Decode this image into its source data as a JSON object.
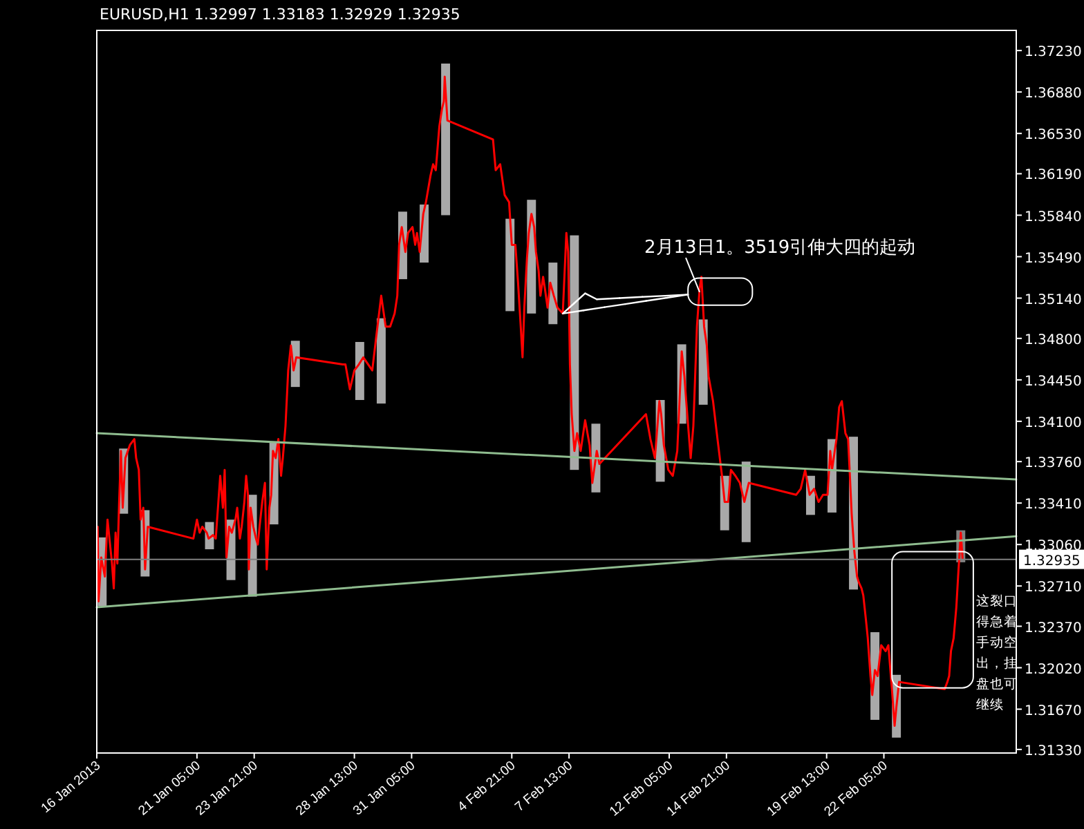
{
  "chart_data": {
    "type": "line",
    "title": "EURUSD,H1  1.32997 1.33183 1.32929 1.32935",
    "xlim": [
      "2013-01-16T13:00",
      "2013-02-28T09:00"
    ],
    "xticks": [
      {
        "value": "2013-01-16T13:00",
        "label": "16 Jan 2013"
      },
      {
        "value": "2013-01-21T05:00",
        "label": "21 Jan 05:00"
      },
      {
        "value": "2013-01-23T21:00",
        "label": "23 Jan 21:00"
      },
      {
        "value": "2013-01-28T13:00",
        "label": "28 Jan 13:00"
      },
      {
        "value": "2013-01-31T05:00",
        "label": "31 Jan 05:00"
      },
      {
        "value": "2013-02-04T21:00",
        "label": "4 Feb 21:00"
      },
      {
        "value": "2013-02-07T13:00",
        "label": "7 Feb 13:00"
      },
      {
        "value": "2013-02-12T05:00",
        "label": "12 Feb 05:00"
      },
      {
        "value": "2013-02-14T21:00",
        "label": "14 Feb 21:00"
      },
      {
        "value": "2013-02-19T13:00",
        "label": "19 Feb 13:00"
      },
      {
        "value": "2013-02-22T05:00",
        "label": "22 Feb 05:00"
      }
    ],
    "ylim": [
      1.313,
      1.374
    ],
    "yticks": [
      {
        "value": 1.3723,
        "label": "1.37230"
      },
      {
        "value": 1.3688,
        "label": "1.36880"
      },
      {
        "value": 1.3653,
        "label": "1.36530"
      },
      {
        "value": 1.3619,
        "label": "1.36190"
      },
      {
        "value": 1.3584,
        "label": "1.35840"
      },
      {
        "value": 1.3549,
        "label": "1.35490"
      },
      {
        "value": 1.3514,
        "label": "1.35140"
      },
      {
        "value": 1.348,
        "label": "1.34800"
      },
      {
        "value": 1.3445,
        "label": "1.34450"
      },
      {
        "value": 1.341,
        "label": "1.34100"
      },
      {
        "value": 1.3376,
        "label": "1.33760"
      },
      {
        "value": 1.3341,
        "label": "1.33410"
      },
      {
        "value": 1.3306,
        "label": "1.33060"
      },
      {
        "value": 1.3271,
        "label": "1.32710"
      },
      {
        "value": 1.3237,
        "label": "1.32370"
      },
      {
        "value": 1.3202,
        "label": "1.32020"
      },
      {
        "value": 1.3167,
        "label": "1.31670"
      },
      {
        "value": 1.3133,
        "label": "1.31330"
      }
    ],
    "series": [
      {
        "type": "bar",
        "x": [
          "2013-01-16T19:00",
          "2013-01-17T19:00",
          "2013-01-18T19:00",
          "2013-01-21T19:00",
          "2013-01-22T19:00",
          "2013-01-23T19:00",
          "2013-01-24T19:00",
          "2013-01-25T19:00",
          "2013-01-28T19:00",
          "2013-01-29T19:00",
          "2013-01-30T19:00",
          "2013-01-31T19:00",
          "2013-02-01T19:00",
          "2013-02-04T19:00",
          "2013-02-05T19:00",
          "2013-02-06T19:00",
          "2013-02-07T19:00",
          "2013-02-08T19:00",
          "2013-02-11T19:00",
          "2013-02-12T19:00",
          "2013-02-13T19:00",
          "2013-02-14T19:00",
          "2013-02-15T19:00",
          "2013-02-18T19:00",
          "2013-02-19T19:00",
          "2013-02-20T19:00",
          "2013-02-21T19:00",
          "2013-02-22T19:00",
          "2013-02-25T19:00"
        ],
        "base": [
          1.3254,
          1.3332,
          1.3279,
          1.3302,
          1.3276,
          1.3262,
          1.3323,
          1.3439,
          1.3428,
          1.3425,
          1.353,
          1.3544,
          1.3584,
          1.3503,
          1.3501,
          1.3492,
          1.3369,
          1.335,
          1.3359,
          1.3408,
          1.3424,
          1.3318,
          1.3308,
          1.3331,
          1.3333,
          1.3268,
          1.3158,
          1.3143,
          1.3291
        ],
        "values": [
          0.0058,
          0.0055,
          0.0056,
          0.0023,
          0.0051,
          0.0086,
          0.0069,
          0.0039,
          0.0049,
          0.0072,
          0.0057,
          0.0049,
          0.0128,
          0.0078,
          0.0096,
          0.0052,
          0.0198,
          0.0058,
          0.0069,
          0.0067,
          0.0072,
          0.0046,
          0.0068,
          0.0033,
          0.0062,
          0.0129,
          0.0074,
          0.0053,
          0.0027
        ],
        "colors": [
          "#a9a9a9",
          "#a9a9a9",
          "#a9a9a9",
          "#a9a9a9",
          "#a9a9a9",
          "#a9a9a9",
          "#a9a9a9",
          "#a9a9a9",
          "#a9a9a9",
          "#a9a9a9",
          "#a9a9a9",
          "#a9a9a9",
          "#a9a9a9",
          "#a9a9a9",
          "#a9a9a9",
          "#a9a9a9",
          "#a9a9a9",
          "#a9a9a9",
          "#a9a9a9",
          "#a9a9a9",
          "#a9a9a9",
          "#a9a9a9",
          "#a9a9a9",
          "#a9a9a9",
          "#a9a9a9",
          "#a9a9a9",
          "#a9a9a9",
          "#a9a9a9",
          "#808080"
        ]
      },
      {
        "color": "#ff0000",
        "x": [
          "2013-01-16T14:00",
          "2013-01-16T15:00",
          "2013-01-16T18:00",
          "2013-01-16T22:00",
          "2013-01-17T01:00",
          "2013-01-17T06:00",
          "2013-01-17T08:00",
          "2013-01-17T10:00",
          "2013-01-17T12:00",
          "2013-01-17T14:00",
          "2013-01-17T16:00",
          "2013-01-17T18:00",
          "2013-01-17T21:00",
          "2013-01-18T02:00",
          "2013-01-18T07:00",
          "2013-01-18T09:00",
          "2013-01-18T12:00",
          "2013-01-18T14:00",
          "2013-01-18T17:00",
          "2013-01-18T19:00",
          "2013-01-18T22:00",
          "2013-01-21T01:00",
          "2013-01-21T05:00",
          "2013-01-21T08:00",
          "2013-01-21T11:00",
          "2013-01-21T16:00",
          "2013-01-21T18:00",
          "2013-01-21T23:00",
          "2013-01-22T02:00",
          "2013-01-22T07:00",
          "2013-01-22T10:00",
          "2013-01-22T12:00",
          "2013-01-22T14:00",
          "2013-01-22T17:00",
          "2013-01-22T20:00",
          "2013-01-23T00:00",
          "2013-01-23T02:00",
          "2013-01-23T05:00",
          "2013-01-23T07:00",
          "2013-01-23T10:00",
          "2013-01-23T12:00",
          "2013-01-23T14:00",
          "2013-01-23T15:00",
          "2013-01-23T17:00",
          "2013-01-23T20:00",
          "2013-01-23T23:00",
          "2013-01-24T01:00",
          "2013-01-24T03:00",
          "2013-01-24T06:00",
          "2013-01-24T09:00",
          "2013-01-24T11:00",
          "2013-01-24T14:00",
          "2013-01-24T16:00",
          "2013-01-24T18:00",
          "2013-01-24T21:00",
          "2013-01-25T00:00",
          "2013-01-25T03:00",
          "2013-01-25T05:00",
          "2013-01-25T08:00",
          "2013-01-25T11:00",
          "2013-01-25T14:00",
          "2013-01-25T17:00",
          "2013-01-25T20:00",
          "2013-01-28T00:00",
          "2013-01-28T03:00",
          "2013-01-28T08:00",
          "2013-01-28T13:00",
          "2013-01-28T18:00",
          "2013-01-28T23:00",
          "2013-01-29T09:00",
          "2013-01-29T14:00",
          "2013-01-29T19:00",
          "2013-01-30T00:00",
          "2013-01-30T05:00",
          "2013-01-30T10:00",
          "2013-01-30T13:00",
          "2013-01-30T15:00",
          "2013-01-30T18:00",
          "2013-01-30T22:00",
          "2013-01-31T01:00",
          "2013-01-31T06:00",
          "2013-01-31T09:00",
          "2013-01-31T11:00",
          "2013-01-31T14:00",
          "2013-01-31T18:00",
          "2013-01-31T21:00",
          "2013-02-01T02:00",
          "2013-02-01T05:00",
          "2013-02-01T08:00",
          "2013-02-01T12:00",
          "2013-02-01T15:00",
          "2013-02-01T17:00",
          "2013-02-01T18:00",
          "2013-02-01T21:00",
          "2013-02-04T00:00",
          "2013-02-04T03:00",
          "2013-02-04T08:00",
          "2013-02-04T13:00",
          "2013-02-04T18:00",
          "2013-02-04T21:00",
          "2013-02-05T01:00",
          "2013-02-05T04:00",
          "2013-02-05T07:00",
          "2013-02-05T09:00",
          "2013-02-05T11:00",
          "2013-02-05T14:00",
          "2013-02-05T16:00",
          "2013-02-05T19:00",
          "2013-02-05T22:00",
          "2013-02-06T00:00",
          "2013-02-06T03:00",
          "2013-02-06T05:00",
          "2013-02-06T08:00",
          "2013-02-06T10:00",
          "2013-02-06T13:00",
          "2013-02-06T16:00",
          "2013-02-06T20:00",
          "2013-02-07T00:00",
          "2013-02-07T06:00",
          "2013-02-07T10:00",
          "2013-02-07T12:00",
          "2013-02-07T14:00",
          "2013-02-07T16:00",
          "2013-02-07T19:00",
          "2013-02-07T22:00",
          "2013-02-08T02:00",
          "2013-02-08T07:00",
          "2013-02-08T12:00",
          "2013-02-08T15:00",
          "2013-02-08T20:00",
          "2013-02-08T23:00",
          "2013-02-11T03:00",
          "2013-02-11T08:00",
          "2013-02-11T13:00",
          "2013-02-11T18:00",
          "2013-02-11T20:00",
          "2013-02-11T23:00",
          "2013-02-12T04:00",
          "2013-02-12T09:00",
          "2013-02-12T14:00",
          "2013-02-12T19:00",
          "2013-02-12T22:00",
          "2013-02-13T00:00",
          "2013-02-13T05:00",
          "2013-02-13T08:00",
          "2013-02-13T12:00",
          "2013-02-13T15:00",
          "2013-02-13T17:00",
          "2013-02-13T20:00",
          "2013-02-13T23:00",
          "2013-02-14T01:00",
          "2013-02-14T06:00",
          "2013-02-14T11:00",
          "2013-02-14T16:00",
          "2013-02-14T19:00",
          "2013-02-14T23:00",
          "2013-02-15T02:00",
          "2013-02-15T07:00",
          "2013-02-15T12:00",
          "2013-02-15T17:00",
          "2013-02-15T22:00",
          "2013-02-18T03:00",
          "2013-02-18T08:00",
          "2013-02-18T13:00",
          "2013-02-18T18:00",
          "2013-02-18T23:00",
          "2013-02-19T04:00",
          "2013-02-19T09:00",
          "2013-02-19T14:00",
          "2013-02-19T17:00",
          "2013-02-19T19:00",
          "2013-02-20T00:00",
          "2013-02-20T03:00",
          "2013-02-20T06:00",
          "2013-02-20T10:00",
          "2013-02-20T13:00",
          "2013-02-20T15:00",
          "2013-02-20T17:00",
          "2013-02-20T20:00",
          "2013-02-20T23:00",
          "2013-02-21T01:00",
          "2013-02-21T04:00",
          "2013-02-21T06:00",
          "2013-02-21T09:00",
          "2013-02-21T11:00",
          "2013-02-21T14:00",
          "2013-02-21T16:00",
          "2013-02-21T19:00",
          "2013-02-21T22:00",
          "2013-02-22T02:00",
          "2013-02-22T07:00",
          "2013-02-22T10:00",
          "2013-02-22T14:00",
          "2013-02-22T17:00",
          "2013-02-22T19:00",
          "2013-02-22T22:00",
          "2013-02-25T01:00",
          "2013-02-25T04:00",
          "2013-02-25T06:00",
          "2013-02-25T08:00",
          "2013-02-25T11:00",
          "2013-02-25T14:00",
          "2013-02-25T16:00",
          "2013-02-25T19:00",
          "2013-02-25T21:00"
        ],
        "values": [
          1.3321,
          1.3258,
          1.3295,
          1.3279,
          1.3327,
          1.329,
          1.3269,
          1.3316,
          1.329,
          1.3342,
          1.3385,
          1.3337,
          1.3379,
          1.339,
          1.3395,
          1.3379,
          1.3369,
          1.3327,
          1.3337,
          1.3285,
          1.3321,
          1.3311,
          1.3327,
          1.3316,
          1.3321,
          1.3316,
          1.3311,
          1.3314,
          1.3311,
          1.3364,
          1.3337,
          1.3369,
          1.3295,
          1.3321,
          1.3316,
          1.3327,
          1.3337,
          1.3311,
          1.3321,
          1.3342,
          1.3364,
          1.3348,
          1.3285,
          1.3337,
          1.3321,
          1.3311,
          1.3306,
          1.3321,
          1.3342,
          1.3358,
          1.3285,
          1.3337,
          1.3348,
          1.3385,
          1.3379,
          1.3395,
          1.3364,
          1.3379,
          1.3406,
          1.3453,
          1.3474,
          1.3453,
          1.3464,
          1.3458,
          1.3458,
          1.3437,
          1.3453,
          1.3458,
          1.3464,
          1.3453,
          1.3485,
          1.3516,
          1.349,
          1.349,
          1.3501,
          1.3516,
          1.3559,
          1.3574,
          1.3553,
          1.3569,
          1.3574,
          1.3559,
          1.3569,
          1.3553,
          1.3585,
          1.3595,
          1.3617,
          1.3627,
          1.3622,
          1.3659,
          1.3674,
          1.368,
          1.3701,
          1.3664,
          1.3648,
          1.3622,
          1.3627,
          1.3601,
          1.3595,
          1.3559,
          1.3559,
          1.3527,
          1.349,
          1.3464,
          1.3506,
          1.3548,
          1.3569,
          1.3585,
          1.3574,
          1.3553,
          1.3537,
          1.3516,
          1.3532,
          1.3522,
          1.3506,
          1.3527,
          1.3516,
          1.3506,
          1.3501,
          1.3569,
          1.3553,
          1.3458,
          1.3416,
          1.3385,
          1.34,
          1.3385,
          1.3411,
          1.339,
          1.3358,
          1.3385,
          1.3374,
          1.3416,
          1.3395,
          1.3379,
          1.3427,
          1.3416,
          1.339,
          1.3369,
          1.3364,
          1.3385,
          1.3469,
          1.3448,
          1.3427,
          1.3379,
          1.3406,
          1.349,
          1.3522,
          1.3532,
          1.349,
          1.3474,
          1.3448,
          1.3427,
          1.3395,
          1.3364,
          1.3342,
          1.3342,
          1.3369,
          1.3364,
          1.3358,
          1.3342,
          1.3358,
          1.3348,
          1.3353,
          1.3369,
          1.3348,
          1.3353,
          1.3342,
          1.3348,
          1.3348,
          1.3385,
          1.3369,
          1.3395,
          1.3422,
          1.3427,
          1.34,
          1.3395,
          1.3364,
          1.3332,
          1.33,
          1.3279,
          1.3274,
          1.3269,
          1.3263,
          1.3242,
          1.3227,
          1.3195,
          1.3179,
          1.32,
          1.3195,
          1.3221,
          1.3216,
          1.3221,
          1.3184,
          1.3153,
          1.3169,
          1.319,
          1.3184,
          1.319,
          1.3195,
          1.3216,
          1.3227,
          1.3253,
          1.3279,
          1.3316,
          1.3294
        ]
      },
      {
        "color": "#8fbc8f",
        "x": [
          "2013-01-16T13:00",
          "2013-02-28T09:00"
        ],
        "values": [
          1.34,
          1.3361
        ]
      },
      {
        "color": "#8fbc8f",
        "x": [
          "2013-01-16T13:00",
          "2013-02-28T09:00"
        ],
        "values": [
          1.3253,
          1.3313
        ]
      }
    ],
    "ref_lines": [
      {
        "axis": "y",
        "value": 1.32935,
        "label": "1.32935",
        "color": "#808080"
      }
    ],
    "annotations": [
      {
        "text": "2月13日1。3519引伸大四的起动",
        "x": "2013-02-13T15:00",
        "y": 1.3519
      },
      "这裂口得急着手动空出，挂盘也可继续"
    ]
  }
}
